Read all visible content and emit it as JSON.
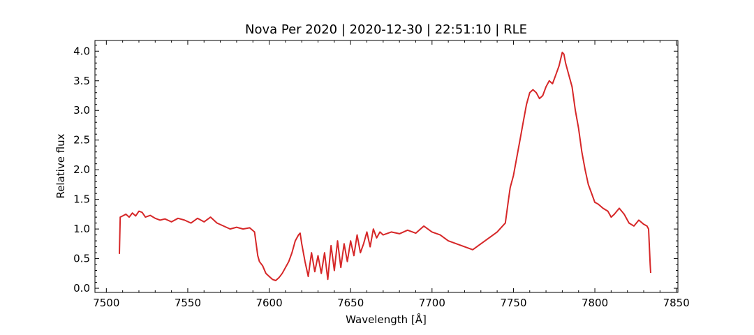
{
  "chart_data": {
    "type": "line",
    "title": "Nova Per 2020 | 2020-12-30 | 22:51:10 | RLE",
    "xlabel": "Wavelength [Å]",
    "ylabel": "Relative flux",
    "xlim": [
      7493,
      7851
    ],
    "ylim": [
      -0.07,
      4.18
    ],
    "xticks": [
      7500,
      7550,
      7600,
      7650,
      7700,
      7750,
      7800,
      7850
    ],
    "yticks": [
      0.0,
      0.5,
      1.0,
      1.5,
      2.0,
      2.5,
      3.0,
      3.5,
      4.0
    ],
    "xtick_labels": [
      "7500",
      "7550",
      "7600",
      "7650",
      "7700",
      "7750",
      "7800",
      "7850"
    ],
    "ytick_labels": [
      "0.0",
      "0.5",
      "1.0",
      "1.5",
      "2.0",
      "2.5",
      "3.0",
      "3.5",
      "4.0"
    ],
    "grid": false,
    "line_color": "#d62728",
    "series": [
      {
        "x": [
          7508,
          7508.5,
          7510,
          7512,
          7514,
          7516,
          7518,
          7520,
          7522,
          7524,
          7527,
          7530,
          7533,
          7536,
          7540,
          7544,
          7548,
          7552,
          7556,
          7560,
          7564,
          7568,
          7572,
          7576,
          7580,
          7584,
          7588,
          7591,
          7592,
          7593,
          7594,
          7596,
          7598,
          7600,
          7602,
          7604,
          7606,
          7608,
          7610,
          7612,
          7614,
          7616,
          7618,
          7619,
          7620,
          7622,
          7624,
          7626,
          7628,
          7630,
          7632,
          7634,
          7636,
          7638,
          7640,
          7642,
          7644,
          7646,
          7648,
          7650,
          7652,
          7654,
          7656,
          7658,
          7660,
          7662,
          7664,
          7666,
          7668,
          7670,
          7675,
          7680,
          7685,
          7690,
          7695,
          7700,
          7705,
          7710,
          7715,
          7720,
          7725,
          7730,
          7735,
          7740,
          7745,
          7747,
          7748,
          7750,
          7752,
          7754,
          7756,
          7758,
          7760,
          7762,
          7764,
          7766,
          7768,
          7770,
          7772,
          7774,
          7776,
          7778,
          7780,
          7781,
          7782,
          7784,
          7786,
          7788,
          7790,
          7792,
          7794,
          7796,
          7798,
          7800,
          7802,
          7805,
          7808,
          7810,
          7812,
          7815,
          7818,
          7821,
          7824,
          7827,
          7830,
          7832,
          7833,
          7834,
          7834.3
        ],
        "y": [
          0.58,
          1.2,
          1.22,
          1.25,
          1.2,
          1.27,
          1.22,
          1.3,
          1.28,
          1.2,
          1.23,
          1.18,
          1.15,
          1.17,
          1.12,
          1.18,
          1.15,
          1.1,
          1.18,
          1.12,
          1.2,
          1.1,
          1.05,
          1.0,
          1.03,
          1.0,
          1.02,
          0.95,
          0.75,
          0.55,
          0.45,
          0.38,
          0.25,
          0.2,
          0.15,
          0.13,
          0.18,
          0.25,
          0.35,
          0.45,
          0.6,
          0.8,
          0.9,
          0.93,
          0.75,
          0.45,
          0.2,
          0.6,
          0.28,
          0.55,
          0.25,
          0.6,
          0.15,
          0.72,
          0.3,
          0.8,
          0.35,
          0.75,
          0.45,
          0.8,
          0.55,
          0.9,
          0.6,
          0.75,
          0.95,
          0.7,
          1.0,
          0.85,
          0.95,
          0.9,
          0.95,
          0.92,
          0.98,
          0.93,
          1.05,
          0.95,
          0.9,
          0.8,
          0.75,
          0.7,
          0.65,
          0.75,
          0.85,
          0.95,
          1.1,
          1.5,
          1.7,
          1.9,
          2.2,
          2.5,
          2.8,
          3.1,
          3.3,
          3.35,
          3.3,
          3.2,
          3.25,
          3.4,
          3.5,
          3.45,
          3.6,
          3.75,
          3.98,
          3.95,
          3.8,
          3.6,
          3.4,
          3.0,
          2.7,
          2.3,
          2.0,
          1.75,
          1.6,
          1.45,
          1.42,
          1.35,
          1.3,
          1.2,
          1.25,
          1.35,
          1.25,
          1.1,
          1.05,
          1.15,
          1.08,
          1.05,
          1.0,
          0.4,
          0.26
        ]
      }
    ]
  }
}
